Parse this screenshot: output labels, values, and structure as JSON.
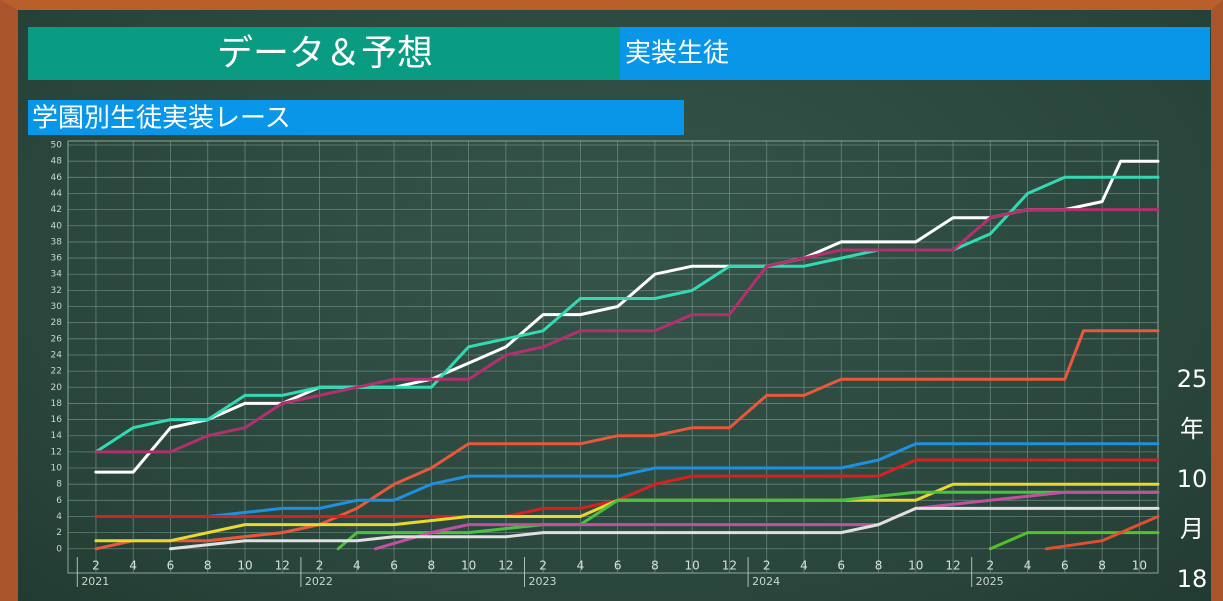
{
  "header": {
    "title": "データ＆予想",
    "section": "実装生徒"
  },
  "chart_data": {
    "type": "line",
    "title": "学園別生徒実装レース",
    "xlim": [
      -0.5,
      58
    ],
    "ylim": [
      -3,
      50.5
    ],
    "yticks": [
      0,
      2,
      4,
      6,
      8,
      10,
      12,
      14,
      16,
      18,
      20,
      22,
      24,
      26,
      28,
      30,
      32,
      34,
      36,
      38,
      40,
      42,
      44,
      46,
      48,
      50
    ],
    "xticks": [
      {
        "value": 1,
        "label": "2"
      },
      {
        "value": 3,
        "label": "4"
      },
      {
        "value": 5,
        "label": "6"
      },
      {
        "value": 7,
        "label": "8"
      },
      {
        "value": 9,
        "label": "10"
      },
      {
        "value": 11,
        "label": "12"
      },
      {
        "value": 13,
        "label": "2"
      },
      {
        "value": 15,
        "label": "4"
      },
      {
        "value": 17,
        "label": "6"
      },
      {
        "value": 19,
        "label": "8"
      },
      {
        "value": 21,
        "label": "10"
      },
      {
        "value": 23,
        "label": "12"
      },
      {
        "value": 25,
        "label": "2"
      },
      {
        "value": 27,
        "label": "4"
      },
      {
        "value": 29,
        "label": "6"
      },
      {
        "value": 31,
        "label": "8"
      },
      {
        "value": 33,
        "label": "10"
      },
      {
        "value": 35,
        "label": "12"
      },
      {
        "value": 37,
        "label": "2"
      },
      {
        "value": 39,
        "label": "4"
      },
      {
        "value": 41,
        "label": "6"
      },
      {
        "value": 43,
        "label": "8"
      },
      {
        "value": 45,
        "label": "10"
      },
      {
        "value": 47,
        "label": "12"
      },
      {
        "value": 49,
        "label": "2"
      },
      {
        "value": 51,
        "label": "4"
      },
      {
        "value": 53,
        "label": "6"
      },
      {
        "value": 55,
        "label": "8"
      },
      {
        "value": 57,
        "label": "10"
      }
    ],
    "year_ticks": [
      {
        "value": 0,
        "label": "2021"
      },
      {
        "value": 12,
        "label": "2022"
      },
      {
        "value": 24,
        "label": "2023"
      },
      {
        "value": 36,
        "label": "2024"
      },
      {
        "value": 48,
        "label": "2025"
      }
    ],
    "grid": true,
    "series": [
      {
        "color": "#ffffff",
        "x": [
          1,
          3,
          5,
          7,
          9,
          11,
          13,
          15,
          17,
          19,
          21,
          23,
          25,
          27,
          29,
          31,
          33,
          35,
          37,
          39,
          41,
          43,
          45,
          47,
          49,
          51,
          53,
          55,
          56,
          58
        ],
        "values": [
          9.5,
          9.5,
          15,
          16,
          18,
          18,
          20,
          20,
          20,
          21,
          23,
          25,
          29,
          29,
          30,
          34,
          35,
          35,
          35,
          36,
          38,
          38,
          38,
          41,
          41,
          42,
          42,
          43,
          48,
          48
        ]
      },
      {
        "color": "#33d9b2",
        "x": [
          1,
          3,
          5,
          7,
          9,
          11,
          13,
          15,
          17,
          19,
          21,
          23,
          25,
          27,
          29,
          31,
          33,
          35,
          37,
          39,
          41,
          43,
          45,
          47,
          49,
          51,
          53,
          55,
          58
        ],
        "values": [
          12,
          15,
          16,
          16,
          19,
          19,
          20,
          20,
          20,
          20,
          25,
          26,
          27,
          31,
          31,
          31,
          32,
          35,
          35,
          35,
          36,
          37,
          37,
          37,
          39,
          44,
          46,
          46,
          46
        ]
      },
      {
        "color": "#b3306f",
        "x": [
          1,
          5,
          7,
          9,
          11,
          13,
          15,
          17,
          19,
          21,
          23,
          25,
          27,
          29,
          31,
          33,
          35,
          37,
          39,
          41,
          43,
          45,
          47,
          49,
          51,
          53,
          55,
          58
        ],
        "values": [
          12,
          12,
          14,
          15,
          18,
          19,
          20,
          21,
          21,
          21,
          24,
          25,
          27,
          27,
          27,
          29,
          29,
          35,
          36,
          37,
          37,
          37,
          37,
          41,
          42,
          42,
          42,
          42
        ]
      },
      {
        "color": "#e8583a",
        "x": [
          1,
          3,
          7,
          11,
          13,
          15,
          17,
          19,
          21,
          23,
          25,
          27,
          29,
          31,
          33,
          35,
          37,
          39,
          41,
          43,
          45,
          47,
          49,
          51,
          53,
          54,
          58
        ],
        "values": [
          0,
          1,
          1,
          2,
          3,
          5,
          8,
          10,
          13,
          13,
          13,
          13,
          14,
          14,
          15,
          15,
          19,
          19,
          21,
          21,
          21,
          21,
          21,
          21,
          21,
          27,
          27
        ]
      },
      {
        "color": "#1f8fe0",
        "x": [
          1,
          7,
          11,
          13,
          15,
          17,
          19,
          21,
          25,
          29,
          31,
          33,
          37,
          41,
          43,
          45,
          47,
          49,
          58
        ],
        "values": [
          4,
          4,
          5,
          5,
          6,
          6,
          8,
          9,
          9,
          9,
          10,
          10,
          10,
          10,
          11,
          13,
          13,
          13,
          13
        ]
      },
      {
        "color": "#d82020",
        "x": [
          1,
          5,
          11,
          15,
          17,
          19,
          21,
          23,
          25,
          27,
          29,
          31,
          33,
          35,
          37,
          41,
          43,
          45,
          47,
          49,
          58
        ],
        "values": [
          4,
          4,
          4,
          4,
          4,
          4,
          4,
          4,
          5,
          5,
          6,
          8,
          9,
          9,
          9,
          9,
          9,
          11,
          11,
          11,
          11
        ]
      },
      {
        "color": "#e8d830",
        "x": [
          1,
          5,
          9,
          11,
          13,
          17,
          21,
          25,
          27,
          29,
          33,
          37,
          41,
          45,
          47,
          49,
          58
        ],
        "values": [
          1,
          1,
          3,
          3,
          3,
          3,
          4,
          4,
          4,
          6,
          6,
          6,
          6,
          6,
          8,
          8,
          8
        ]
      },
      {
        "color": "#4cc040",
        "x": [
          14,
          15,
          17,
          21,
          25,
          27,
          29,
          37,
          41,
          45,
          58
        ],
        "values": [
          0,
          2,
          2,
          2,
          3,
          3,
          6,
          6,
          6,
          7,
          7
        ]
      },
      {
        "color": "#c050a0",
        "x": [
          16,
          19,
          21,
          27,
          41,
          43,
          45,
          49,
          53,
          58
        ],
        "values": [
          0,
          2,
          3,
          3,
          3,
          3,
          5,
          6,
          7,
          7
        ]
      },
      {
        "color": "#e0e0e0",
        "x": [
          5,
          9,
          13,
          15,
          17,
          21,
          23,
          25,
          29,
          33,
          37,
          41,
          43,
          45,
          58
        ],
        "values": [
          0,
          1,
          1,
          1,
          1.5,
          1.5,
          1.5,
          2,
          2,
          2,
          2,
          2,
          3,
          5,
          5
        ]
      },
      {
        "color": "#56c02a",
        "x": [
          49,
          51,
          58
        ],
        "values": [
          0,
          2,
          2
        ]
      },
      {
        "color": "#e05030",
        "x": [
          52,
          55,
          56,
          58
        ],
        "values": [
          0,
          1,
          2,
          4
        ]
      }
    ]
  },
  "side_date": [
    "25",
    "年",
    "10",
    "月",
    "18"
  ]
}
